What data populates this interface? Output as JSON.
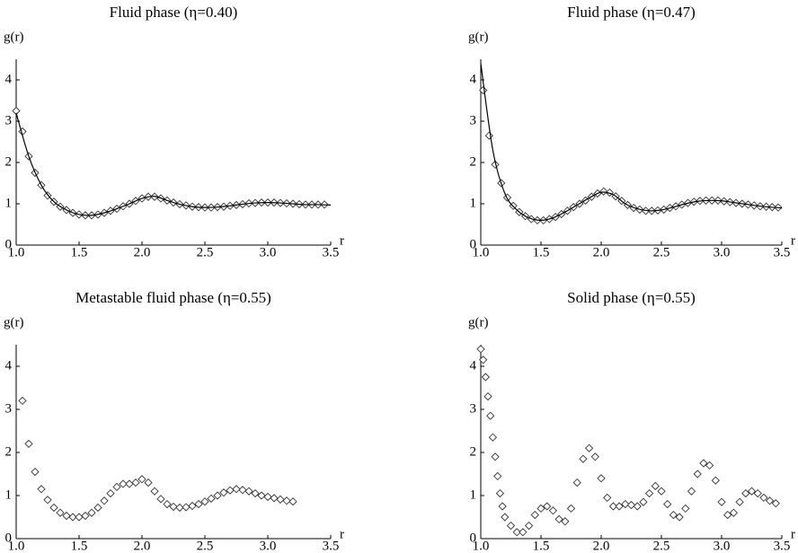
{
  "chart_data": [
    {
      "type": "line",
      "title": "Fluid phase (η=0.40)",
      "ylabel": "g(r)",
      "xlabel": "r",
      "xlim": [
        1.0,
        3.5
      ],
      "ylim": [
        0,
        4.5
      ],
      "xticks": [
        {
          "value": 1,
          "label": "1.0"
        },
        {
          "value": 1.5,
          "label": "1.5"
        },
        {
          "value": 2,
          "label": "2.0"
        },
        {
          "value": 2.5,
          "label": "2.5"
        },
        {
          "value": 3,
          "label": "3.0"
        },
        {
          "value": 3.5,
          "label": "3.5"
        }
      ],
      "yticks": [
        0,
        1,
        2,
        3,
        4
      ],
      "series": [
        {
          "marker": "diamond",
          "color": "#333333",
          "x": [
            1.0,
            1.05,
            1.1,
            1.15,
            1.2,
            1.25,
            1.3,
            1.35,
            1.4,
            1.45,
            1.5,
            1.55,
            1.6,
            1.65,
            1.7,
            1.75,
            1.8,
            1.85,
            1.9,
            1.95,
            2.0,
            2.05,
            2.1,
            2.15,
            2.2,
            2.25,
            2.3,
            2.35,
            2.4,
            2.45,
            2.5,
            2.55,
            2.6,
            2.65,
            2.7,
            2.75,
            2.8,
            2.85,
            2.9,
            2.95,
            3.0,
            3.05,
            3.1,
            3.15,
            3.2,
            3.25,
            3.3,
            3.35,
            3.4,
            3.45
          ],
          "values": [
            3.25,
            2.75,
            2.15,
            1.75,
            1.45,
            1.2,
            1.05,
            0.93,
            0.85,
            0.78,
            0.74,
            0.72,
            0.72,
            0.74,
            0.78,
            0.83,
            0.88,
            0.94,
            1.0,
            1.07,
            1.13,
            1.17,
            1.17,
            1.13,
            1.08,
            1.03,
            0.99,
            0.96,
            0.93,
            0.92,
            0.91,
            0.91,
            0.92,
            0.93,
            0.95,
            0.97,
            0.99,
            1.01,
            1.02,
            1.03,
            1.03,
            1.03,
            1.02,
            1.01,
            1.0,
            0.99,
            0.98,
            0.98,
            0.98,
            0.98
          ]
        },
        {
          "marker": "line",
          "color": "#000000",
          "x": [
            1.0,
            1.1,
            1.2,
            1.3,
            1.4,
            1.5,
            1.6,
            1.7,
            1.8,
            1.9,
            2.0,
            2.1,
            2.2,
            2.3,
            2.4,
            2.5,
            2.6,
            2.7,
            2.8,
            2.9,
            3.0,
            3.1,
            3.2,
            3.3,
            3.4,
            3.5
          ],
          "values": [
            3.2,
            2.15,
            1.45,
            1.05,
            0.85,
            0.74,
            0.72,
            0.78,
            0.88,
            1.0,
            1.13,
            1.18,
            1.08,
            0.99,
            0.93,
            0.91,
            0.92,
            0.95,
            0.99,
            1.02,
            1.03,
            1.02,
            1.0,
            0.98,
            0.98,
            0.97
          ]
        }
      ]
    },
    {
      "type": "line",
      "title": "Fluid phase (η=0.47)",
      "ylabel": "g(r)",
      "xlabel": "r",
      "xlim": [
        1.0,
        3.5
      ],
      "ylim": [
        0,
        4.5
      ],
      "xticks": [
        {
          "value": 1,
          "label": "1.0"
        },
        {
          "value": 1.5,
          "label": "1.5"
        },
        {
          "value": 2,
          "label": "2.0"
        },
        {
          "value": 2.5,
          "label": "2.5"
        },
        {
          "value": 3,
          "label": "3.0"
        },
        {
          "value": 3.5,
          "label": "3.5"
        }
      ],
      "yticks": [
        0,
        1,
        2,
        3,
        4
      ],
      "series": [
        {
          "marker": "diamond",
          "color": "#333333",
          "x": [
            1.02,
            1.07,
            1.12,
            1.17,
            1.22,
            1.27,
            1.32,
            1.37,
            1.42,
            1.47,
            1.52,
            1.57,
            1.62,
            1.67,
            1.72,
            1.77,
            1.82,
            1.87,
            1.92,
            1.97,
            2.02,
            2.07,
            2.12,
            2.17,
            2.22,
            2.27,
            2.32,
            2.37,
            2.42,
            2.47,
            2.52,
            2.57,
            2.62,
            2.67,
            2.72,
            2.77,
            2.82,
            2.87,
            2.92,
            2.97,
            3.02,
            3.07,
            3.12,
            3.17,
            3.22,
            3.27,
            3.32,
            3.37,
            3.42,
            3.47
          ],
          "values": [
            3.75,
            2.65,
            1.95,
            1.5,
            1.15,
            0.95,
            0.8,
            0.7,
            0.63,
            0.6,
            0.6,
            0.63,
            0.68,
            0.75,
            0.83,
            0.92,
            1.0,
            1.08,
            1.17,
            1.25,
            1.3,
            1.27,
            1.18,
            1.07,
            0.97,
            0.9,
            0.86,
            0.83,
            0.83,
            0.84,
            0.86,
            0.9,
            0.94,
            0.98,
            1.02,
            1.05,
            1.07,
            1.08,
            1.08,
            1.08,
            1.06,
            1.04,
            1.02,
            1.0,
            0.98,
            0.96,
            0.94,
            0.93,
            0.92,
            0.91
          ]
        },
        {
          "marker": "line",
          "color": "#000000",
          "x": [
            1.0,
            1.1,
            1.2,
            1.3,
            1.4,
            1.5,
            1.6,
            1.7,
            1.8,
            1.9,
            2.0,
            2.1,
            2.2,
            2.3,
            2.4,
            2.5,
            2.6,
            2.7,
            2.8,
            2.9,
            3.0,
            3.1,
            3.2,
            3.3,
            3.4,
            3.5
          ],
          "values": [
            4.4,
            2.3,
            1.25,
            0.85,
            0.66,
            0.6,
            0.66,
            0.8,
            0.97,
            1.14,
            1.28,
            1.22,
            1.0,
            0.88,
            0.83,
            0.85,
            0.92,
            1.0,
            1.06,
            1.08,
            1.07,
            1.03,
            0.99,
            0.95,
            0.92,
            0.9
          ]
        }
      ]
    },
    {
      "type": "line",
      "title": "Metastable fluid phase (η=0.55)",
      "ylabel": "g(r)",
      "xlabel": "r",
      "xlim": [
        1.0,
        3.5
      ],
      "ylim": [
        0,
        4.5
      ],
      "xticks": [
        {
          "value": 1,
          "label": "1.0"
        },
        {
          "value": 1.5,
          "label": "1.5"
        },
        {
          "value": 2,
          "label": "2.0"
        },
        {
          "value": 2.5,
          "label": "2.5"
        },
        {
          "value": 3,
          "label": "3.0"
        },
        {
          "value": 3.5,
          "label": "3.5"
        }
      ],
      "yticks": [
        0,
        1,
        2,
        3,
        4
      ],
      "series": [
        {
          "marker": "diamond",
          "color": "#333333",
          "x": [
            1.05,
            1.1,
            1.15,
            1.2,
            1.25,
            1.3,
            1.35,
            1.4,
            1.45,
            1.5,
            1.55,
            1.6,
            1.65,
            1.7,
            1.75,
            1.8,
            1.85,
            1.9,
            1.95,
            2.0,
            2.05,
            2.1,
            2.15,
            2.2,
            2.25,
            2.3,
            2.35,
            2.4,
            2.45,
            2.5,
            2.55,
            2.6,
            2.65,
            2.7,
            2.75,
            2.8,
            2.85,
            2.9,
            2.95,
            3.0,
            3.05,
            3.1,
            3.15,
            3.2
          ],
          "values": [
            3.2,
            2.2,
            1.55,
            1.15,
            0.9,
            0.72,
            0.6,
            0.53,
            0.5,
            0.5,
            0.53,
            0.6,
            0.72,
            0.88,
            1.05,
            1.2,
            1.27,
            1.27,
            1.3,
            1.38,
            1.3,
            1.1,
            0.92,
            0.8,
            0.74,
            0.72,
            0.73,
            0.76,
            0.8,
            0.86,
            0.93,
            1.0,
            1.07,
            1.12,
            1.15,
            1.13,
            1.1,
            1.05,
            1.0,
            0.97,
            0.94,
            0.91,
            0.88,
            0.86
          ]
        }
      ]
    },
    {
      "type": "line",
      "title": "Solid phase (η=0.55)",
      "ylabel": "g(r)",
      "xlabel": "r",
      "xlim": [
        1.0,
        3.5
      ],
      "ylim": [
        0,
        4.5
      ],
      "xticks": [
        {
          "value": 1,
          "label": "1.0"
        },
        {
          "value": 1.5,
          "label": "1.5"
        },
        {
          "value": 2,
          "label": "2.0"
        },
        {
          "value": 2.5,
          "label": "2.5"
        },
        {
          "value": 3,
          "label": "3.0"
        },
        {
          "value": 3.5,
          "label": "3.5"
        }
      ],
      "yticks": [
        0,
        1,
        2,
        3,
        4
      ],
      "series": [
        {
          "marker": "diamond",
          "color": "#333333",
          "x": [
            1.0,
            1.02,
            1.04,
            1.06,
            1.08,
            1.1,
            1.12,
            1.14,
            1.16,
            1.18,
            1.2,
            1.25,
            1.3,
            1.35,
            1.4,
            1.45,
            1.5,
            1.55,
            1.6,
            1.65,
            1.7,
            1.75,
            1.8,
            1.85,
            1.9,
            1.95,
            2.0,
            2.05,
            2.1,
            2.15,
            2.2,
            2.25,
            2.3,
            2.35,
            2.4,
            2.45,
            2.5,
            2.55,
            2.6,
            2.65,
            2.7,
            2.75,
            2.8,
            2.85,
            2.9,
            2.95,
            3.0,
            3.05,
            3.1,
            3.15,
            3.2,
            3.25,
            3.3,
            3.35,
            3.4,
            3.45
          ],
          "values": [
            4.4,
            4.15,
            3.75,
            3.3,
            2.85,
            2.35,
            1.9,
            1.45,
            1.05,
            0.75,
            0.5,
            0.3,
            0.15,
            0.15,
            0.3,
            0.55,
            0.7,
            0.75,
            0.65,
            0.45,
            0.4,
            0.7,
            1.3,
            1.85,
            2.1,
            1.9,
            1.4,
            0.95,
            0.75,
            0.75,
            0.8,
            0.78,
            0.75,
            0.85,
            1.05,
            1.22,
            1.1,
            0.8,
            0.55,
            0.5,
            0.7,
            1.1,
            1.5,
            1.75,
            1.7,
            1.35,
            0.85,
            0.55,
            0.6,
            0.85,
            1.05,
            1.1,
            1.05,
            0.95,
            0.88,
            0.82
          ]
        }
      ]
    }
  ]
}
